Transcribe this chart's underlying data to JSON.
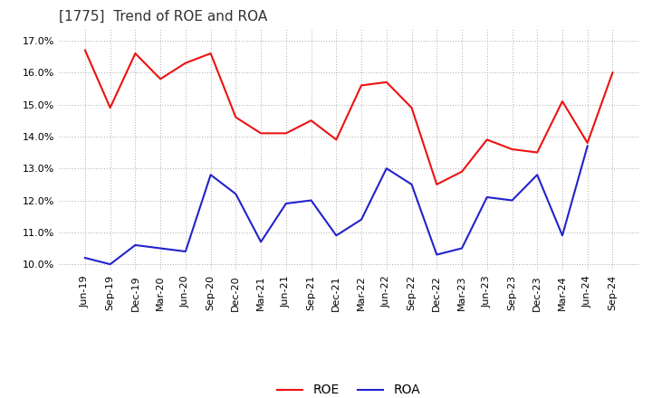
{
  "title": "[1775]  Trend of ROE and ROA",
  "labels": [
    "Jun-19",
    "Sep-19",
    "Dec-19",
    "Mar-20",
    "Jun-20",
    "Sep-20",
    "Dec-20",
    "Mar-21",
    "Jun-21",
    "Sep-21",
    "Dec-21",
    "Mar-22",
    "Jun-22",
    "Sep-22",
    "Dec-22",
    "Mar-23",
    "Jun-23",
    "Sep-23",
    "Dec-23",
    "Mar-24",
    "Jun-24",
    "Sep-24"
  ],
  "ROE": [
    16.7,
    14.9,
    16.6,
    15.8,
    16.3,
    16.6,
    14.6,
    14.1,
    14.1,
    14.5,
    13.9,
    15.6,
    15.7,
    14.9,
    12.5,
    12.9,
    13.9,
    13.6,
    13.5,
    15.1,
    13.8,
    16.0
  ],
  "ROA": [
    10.2,
    10.0,
    10.6,
    10.5,
    10.4,
    12.8,
    12.2,
    10.7,
    11.9,
    12.0,
    10.9,
    11.4,
    13.0,
    12.5,
    10.3,
    10.5,
    12.1,
    12.0,
    12.8,
    10.9,
    13.7,
    null
  ],
  "roe_color": "#EE1111",
  "roa_color": "#2222CC",
  "background_color": "#FFFFFF",
  "plot_background": "#FFFFFF",
  "grid_color": "#AAAAAA",
  "ylim": [
    9.8,
    17.4
  ],
  "yticks": [
    10.0,
    11.0,
    12.0,
    13.0,
    14.0,
    15.0,
    16.0,
    17.0
  ],
  "title_fontsize": 11,
  "legend_fontsize": 10,
  "tick_fontsize": 8
}
